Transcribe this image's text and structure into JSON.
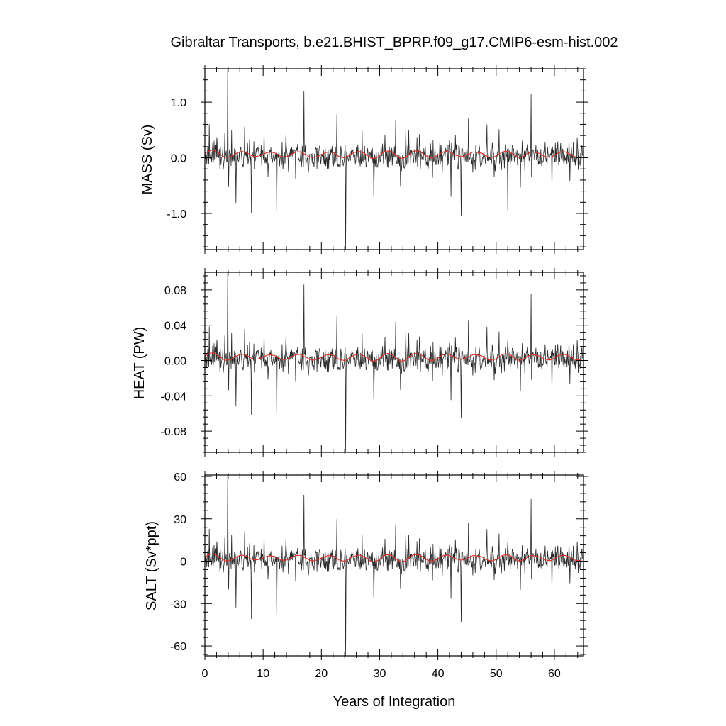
{
  "chart_data": [
    {
      "type": "line",
      "title": "Gibraltar Transports, b.e21.BHIST_BPRP.f09_g17.CMIP6-esm-hist.002",
      "xlabel": "",
      "ylabel": "MASS (Sv)",
      "xlim": [
        0,
        65
      ],
      "ylim": [
        -1.65,
        1.6
      ],
      "xticks": [
        0,
        10,
        20,
        30,
        40,
        50,
        60
      ],
      "yticks": [
        -1.0,
        0.0,
        1.0
      ],
      "ytick_labels": [
        "-1.0",
        "0.0",
        "1.0"
      ],
      "grid": false,
      "colors": {
        "monthly": "#2b2b2b",
        "annual": "#e0302a"
      },
      "series": [
        {
          "values_from": "monthly"
        },
        {
          "values_from": "annual"
        }
      ],
      "scale": 1.0,
      "events": [
        {
          "x": 3.9,
          "y": 1.6
        },
        {
          "x": 17.0,
          "y": 1.2
        },
        {
          "x": 56.0,
          "y": 1.15
        },
        {
          "x": 24.2,
          "y": -1.65
        },
        {
          "x": 44.0,
          "y": -1.05
        },
        {
          "x": 52.0,
          "y": -0.95
        },
        {
          "x": 8.0,
          "y": -1.0
        },
        {
          "x": 12.3,
          "y": -0.95
        },
        {
          "x": 5.3,
          "y": -0.82
        }
      ]
    },
    {
      "type": "line",
      "title": "",
      "xlabel": "",
      "ylabel": "HEAT (PW)",
      "xlim": [
        0,
        65
      ],
      "ylim": [
        -0.104,
        0.1
      ],
      "xticks": [
        0,
        10,
        20,
        30,
        40,
        50,
        60
      ],
      "yticks": [
        -0.08,
        -0.04,
        0.0,
        0.04,
        0.08
      ],
      "ytick_labels": [
        "-0.08",
        "-0.04",
        "0.00",
        "0.04",
        "0.08"
      ],
      "grid": false,
      "colors": {
        "monthly": "#2b2b2b",
        "annual": "#e0302a"
      },
      "scale": 0.064,
      "events": [
        {
          "x": 3.9,
          "y": 0.1
        },
        {
          "x": 17.0,
          "y": 0.086
        },
        {
          "x": 56.0,
          "y": 0.076
        },
        {
          "x": 24.2,
          "y": -0.104
        },
        {
          "x": 44.0,
          "y": -0.065
        },
        {
          "x": 8.0,
          "y": -0.062
        },
        {
          "x": 12.3,
          "y": -0.06
        },
        {
          "x": 5.3,
          "y": -0.052
        }
      ]
    },
    {
      "type": "line",
      "title": "",
      "xlabel": "Years of Integration",
      "ylabel": "SALT (Sv*ppt)",
      "xlim": [
        0,
        65
      ],
      "ylim": [
        -67,
        61
      ],
      "xticks": [
        0,
        10,
        20,
        30,
        40,
        50,
        60
      ],
      "xtick_labels": [
        "0",
        "10",
        "20",
        "30",
        "40",
        "50",
        "60"
      ],
      "yticks": [
        -60,
        -30,
        0,
        30,
        60
      ],
      "ytick_labels": [
        "-60",
        "-30",
        "0",
        "30",
        "60"
      ],
      "grid": false,
      "colors": {
        "monthly": "#2b2b2b",
        "annual": "#e0302a"
      },
      "scale": 38,
      "events": [
        {
          "x": 3.9,
          "y": 61
        },
        {
          "x": 17.0,
          "y": 47
        },
        {
          "x": 56.0,
          "y": 44
        },
        {
          "x": 24.2,
          "y": -67
        },
        {
          "x": 44.0,
          "y": -43
        },
        {
          "x": 8.0,
          "y": -41
        },
        {
          "x": 12.3,
          "y": -38
        },
        {
          "x": 5.3,
          "y": -33
        }
      ]
    }
  ]
}
